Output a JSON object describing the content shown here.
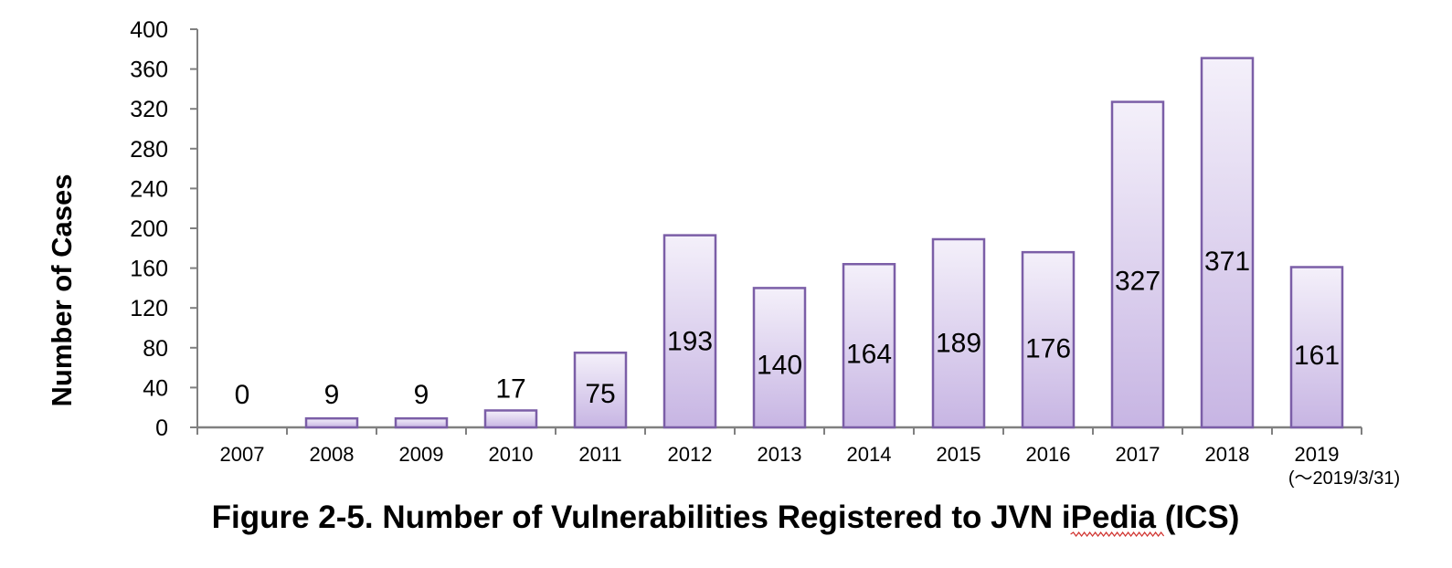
{
  "chart_data": {
    "type": "bar",
    "title": "Figure 2-5.  Number of Vulnerabilities Registered to JVN iPedia (ICS)",
    "xlabel": "",
    "ylabel": "Number of Cases",
    "categories": [
      "2007",
      "2008",
      "2009",
      "2010",
      "2011",
      "2012",
      "2013",
      "2014",
      "2015",
      "2016",
      "2017",
      "2018",
      "2019"
    ],
    "category_notes": [
      "",
      "",
      "",
      "",
      "",
      "",
      "",
      "",
      "",
      "",
      "",
      "",
      "(～2019/3/31)"
    ],
    "values": [
      0,
      9,
      9,
      17,
      75,
      193,
      140,
      164,
      189,
      176,
      327,
      371,
      161
    ],
    "data_labels": [
      "0",
      "9",
      "9",
      "17",
      "75",
      "193",
      "140",
      "164",
      "189",
      "176",
      "327",
      "371",
      "161"
    ],
    "ylim": [
      0,
      400
    ],
    "yticks": [
      0,
      40,
      80,
      120,
      160,
      200,
      240,
      280,
      320,
      360,
      400
    ],
    "grid": false,
    "legend": "none",
    "colors": {
      "bar_top": "#f4f0fa",
      "bar_bottom": "#c7b5e3",
      "bar_border": "#7b5ea7",
      "axis": "#808080",
      "text": "#000000",
      "spellcheck_underline": "#d0312d"
    }
  }
}
